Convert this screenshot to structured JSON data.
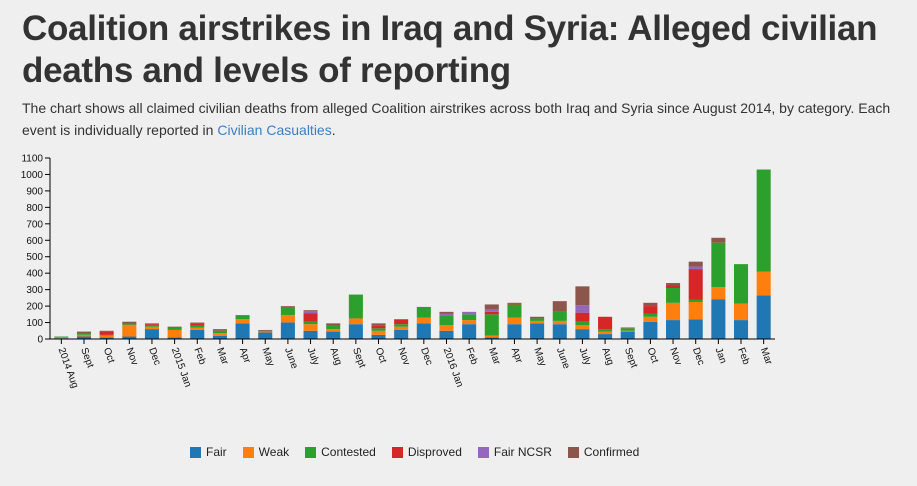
{
  "title": "Coalition airstrikes in Iraq and Syria: Alleged civilian deaths and levels of reporting",
  "description": {
    "text": "The chart shows all claimed civilian deaths from alleged Coalition airstrikes across both Iraq and Syria since August 2014, by category. Each event is individually reported in ",
    "link": "Civilian Casualties",
    "end": "."
  },
  "chart_data": {
    "type": "bar",
    "stacked": true,
    "title": "",
    "xlabel": "",
    "ylabel": "",
    "ylim": [
      0,
      1100
    ],
    "yticks": [
      0,
      100,
      200,
      300,
      400,
      500,
      600,
      700,
      800,
      900,
      1000,
      1100
    ],
    "legend_position": "bottom-center",
    "grid": false,
    "categories": [
      "2014 Aug",
      "Sept",
      "Oct",
      "Nov",
      "Dec",
      "2015 Jan",
      "Feb",
      "Mar",
      "Apr",
      "May",
      "June",
      "July",
      "Aug",
      "Sept",
      "Oct",
      "Nov",
      "Dec",
      "2016 Jan",
      "Feb",
      "Mar",
      "Apr",
      "May",
      "June",
      "July",
      "Aug",
      "Sept",
      "Oct",
      "Nov",
      "Dec",
      "Jan",
      "Feb",
      "Mar"
    ],
    "series": [
      {
        "name": "Fair",
        "color": "#1f77b4",
        "values": [
          5,
          15,
          10,
          15,
          60,
          10,
          55,
          20,
          95,
          40,
          100,
          50,
          45,
          90,
          25,
          55,
          95,
          50,
          90,
          10,
          90,
          95,
          90,
          60,
          30,
          45,
          105,
          115,
          120,
          240,
          115,
          265
        ]
      },
      {
        "name": "Weak",
        "color": "#ff7f0e",
        "values": [
          5,
          10,
          10,
          70,
          15,
          45,
          15,
          15,
          25,
          5,
          45,
          40,
          15,
          35,
          25,
          20,
          35,
          35,
          25,
          10,
          40,
          15,
          20,
          25,
          15,
          5,
          30,
          105,
          105,
          75,
          100,
          145
        ]
      },
      {
        "name": "Contested",
        "color": "#2ca02c",
        "values": [
          5,
          5,
          5,
          5,
          5,
          15,
          10,
          15,
          20,
          5,
          45,
          15,
          25,
          145,
          15,
          15,
          65,
          55,
          35,
          130,
          80,
          15,
          55,
          20,
          15,
          15,
          20,
          90,
          15,
          270,
          240,
          620
        ]
      },
      {
        "name": "Disproved",
        "color": "#d62728",
        "values": [
          0,
          5,
          20,
          5,
          10,
          0,
          15,
          0,
          0,
          0,
          5,
          50,
          0,
          0,
          15,
          30,
          0,
          0,
          0,
          15,
          5,
          0,
          0,
          55,
          75,
          0,
          45,
          15,
          185,
          0,
          0,
          0
        ]
      },
      {
        "name": "Fair NCSR",
        "color": "#9467bd",
        "values": [
          0,
          0,
          0,
          0,
          0,
          0,
          0,
          0,
          0,
          0,
          0,
          15,
          0,
          0,
          0,
          0,
          0,
          15,
          15,
          15,
          0,
          0,
          0,
          45,
          0,
          0,
          0,
          0,
          15,
          0,
          0,
          0
        ]
      },
      {
        "name": "Confirmed",
        "color": "#8c564b",
        "values": [
          0,
          10,
          5,
          10,
          5,
          5,
          5,
          10,
          5,
          5,
          5,
          5,
          10,
          0,
          15,
          0,
          0,
          10,
          0,
          30,
          5,
          10,
          65,
          115,
          0,
          5,
          20,
          15,
          30,
          30,
          0,
          0
        ]
      }
    ]
  }
}
